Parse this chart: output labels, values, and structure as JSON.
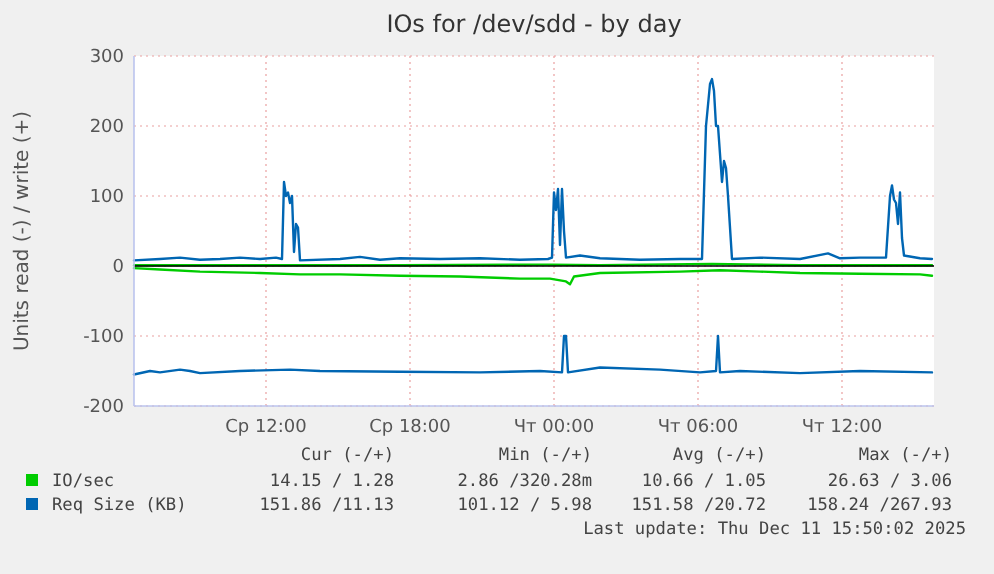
{
  "chart_data": {
    "type": "line",
    "title": "IOs for /dev/sdd - by day",
    "ylabel": "Units read (-) / write (+)",
    "xlim": [
      "2025-12-10T06:30",
      "2025-12-11T15:50"
    ],
    "ylim": [
      -200,
      300
    ],
    "xticks": [
      {
        "value": "2025-12-10T12:00",
        "label": "Ср 12:00"
      },
      {
        "value": "2025-12-10T18:00",
        "label": "Ср 18:00"
      },
      {
        "value": "2025-12-11T00:00",
        "label": "Чт 00:00"
      },
      {
        "value": "2025-12-11T06:00",
        "label": "Чт 06:00"
      },
      {
        "value": "2025-12-11T12:00",
        "label": "Чт 12:00"
      }
    ],
    "yticks": [
      -200,
      -100,
      0,
      100,
      200,
      300
    ],
    "grid": true,
    "legend": "bottom",
    "line_style": "solid",
    "series": [
      {
        "name": "IO/sec",
        "color": "#00cc00",
        "x": [
          "2025-12-10T06:30",
          "2025-12-10T09:15",
          "2025-12-10T13:25",
          "2025-12-10T17:35",
          "2025-12-10T23:55",
          "2025-12-11T01:55",
          "2025-12-11T06:35",
          "2025-12-11T10:15",
          "2025-12-11T15:45"
        ],
        "values": [
          1,
          1,
          1,
          1,
          2,
          1,
          3,
          1,
          1
        ]
      },
      {
        "color": "#00cc00",
        "x": [
          "2025-12-10T06:30",
          "2025-12-10T07:35",
          "2025-12-10T09:15",
          "2025-12-10T11:45",
          "2025-12-10T13:25",
          "2025-12-10T15:05",
          "2025-12-10T17:35",
          "2025-12-10T20:05",
          "2025-12-10T22:35",
          "2025-12-10T23:50",
          "2025-12-11T00:30",
          "2025-12-11T00:40",
          "2025-12-11T00:50",
          "2025-12-11T01:55",
          "2025-12-11T05:15",
          "2025-12-11T06:55",
          "2025-12-11T08:35",
          "2025-12-11T10:15",
          "2025-12-11T12:45",
          "2025-12-11T15:15",
          "2025-12-11T15:45"
        ],
        "values": [
          -3,
          -5,
          -8,
          -10,
          -12,
          -12,
          -14,
          -15,
          -18,
          -18,
          -22,
          -26,
          -15,
          -10,
          -8,
          -6,
          -8,
          -10,
          -11,
          -12,
          -14
        ]
      },
      {
        "name": "Req Size (KB)",
        "color": "#0066b3",
        "x": [
          "2025-12-10T06:30",
          "2025-12-10T07:35",
          "2025-12-10T08:25",
          "2025-12-10T09:15",
          "2025-12-10T10:05",
          "2025-12-10T10:55",
          "2025-12-10T11:45",
          "2025-12-10T12:25",
          "2025-12-10T12:40",
          "2025-12-10T12:45",
          "2025-12-10T12:50",
          "2025-12-10T12:55",
          "2025-12-10T13:00",
          "2025-12-10T13:05",
          "2025-12-10T13:10",
          "2025-12-10T13:15",
          "2025-12-10T13:20",
          "2025-12-10T13:25",
          "2025-12-10T15:05",
          "2025-12-10T15:55",
          "2025-12-10T16:45",
          "2025-12-10T17:35",
          "2025-12-10T19:15",
          "2025-12-10T20:55",
          "2025-12-10T22:35",
          "2025-12-10T23:45",
          "2025-12-10T23:55",
          "2025-12-11T00:00",
          "2025-12-11T00:05",
          "2025-12-11T00:10",
          "2025-12-11T00:15",
          "2025-12-11T00:20",
          "2025-12-11T00:25",
          "2025-12-11T00:30",
          "2025-12-11T01:05",
          "2025-12-11T01:55",
          "2025-12-11T03:35",
          "2025-12-11T05:15",
          "2025-12-11T06:10",
          "2025-12-11T06:20",
          "2025-12-11T06:30",
          "2025-12-11T06:35",
          "2025-12-11T06:40",
          "2025-12-11T06:45",
          "2025-12-11T06:50",
          "2025-12-11T06:55",
          "2025-12-11T07:00",
          "2025-12-11T07:05",
          "2025-12-11T07:10",
          "2025-12-11T07:15",
          "2025-12-11T07:25",
          "2025-12-11T08:35",
          "2025-12-11T10:15",
          "2025-12-11T11:25",
          "2025-12-11T11:55",
          "2025-12-11T12:45",
          "2025-12-11T13:50",
          "2025-12-11T14:00",
          "2025-12-11T14:05",
          "2025-12-11T14:10",
          "2025-12-11T14:15",
          "2025-12-11T14:20",
          "2025-12-11T14:25",
          "2025-12-11T14:30",
          "2025-12-11T14:35",
          "2025-12-11T15:15",
          "2025-12-11T15:45"
        ],
        "values": [
          8,
          10,
          12,
          9,
          10,
          12,
          10,
          12,
          10,
          120,
          100,
          105,
          90,
          100,
          20,
          60,
          55,
          8,
          10,
          13,
          9,
          11,
          10,
          11,
          9,
          10,
          12,
          105,
          80,
          110,
          30,
          110,
          50,
          12,
          15,
          11,
          9,
          10,
          10,
          200,
          260,
          267,
          250,
          200,
          200,
          160,
          120,
          150,
          140,
          100,
          10,
          12,
          10,
          18,
          11,
          12,
          12,
          100,
          115,
          95,
          90,
          60,
          105,
          40,
          15,
          11,
          10
        ]
      },
      {
        "color": "#0066b3",
        "x": [
          "2025-12-10T06:30",
          "2025-12-10T07:10",
          "2025-12-10T07:35",
          "2025-12-10T08:25",
          "2025-12-10T08:50",
          "2025-12-10T09:15",
          "2025-12-10T10:55",
          "2025-12-10T13:00",
          "2025-12-10T14:15",
          "2025-12-10T17:35",
          "2025-12-10T20:55",
          "2025-12-10T23:25",
          "2025-12-11T00:20",
          "2025-12-11T00:25",
          "2025-12-11T00:30",
          "2025-12-11T00:35",
          "2025-12-11T01:55",
          "2025-12-11T04:25",
          "2025-12-11T06:05",
          "2025-12-11T06:45",
          "2025-12-11T06:50",
          "2025-12-11T06:55",
          "2025-12-11T07:45",
          "2025-12-11T10:15",
          "2025-12-11T12:45",
          "2025-12-11T15:45"
        ],
        "values": [
          -155,
          -150,
          -152,
          -148,
          -150,
          -153,
          -150,
          -148,
          -150,
          -151,
          -152,
          -150,
          -152,
          -100,
          -100,
          -152,
          -145,
          -148,
          -152,
          -150,
          -100,
          -152,
          -150,
          -153,
          -150,
          -152
        ]
      }
    ],
    "annotations": [
      "Cur (-/+)",
      "Min (-/+)",
      "Avg (-/+)",
      "Max (-/+)",
      "14.15 / 1.28",
      "2.86 /320.28m",
      "10.66 / 1.05",
      "26.63 / 3.06",
      "151.86 /11.13",
      "101.12 / 5.98",
      "151.58 /20.72",
      "158.24 /267.93",
      "Last update: Thu Dec 11 15:50:02 2025"
    ]
  }
}
